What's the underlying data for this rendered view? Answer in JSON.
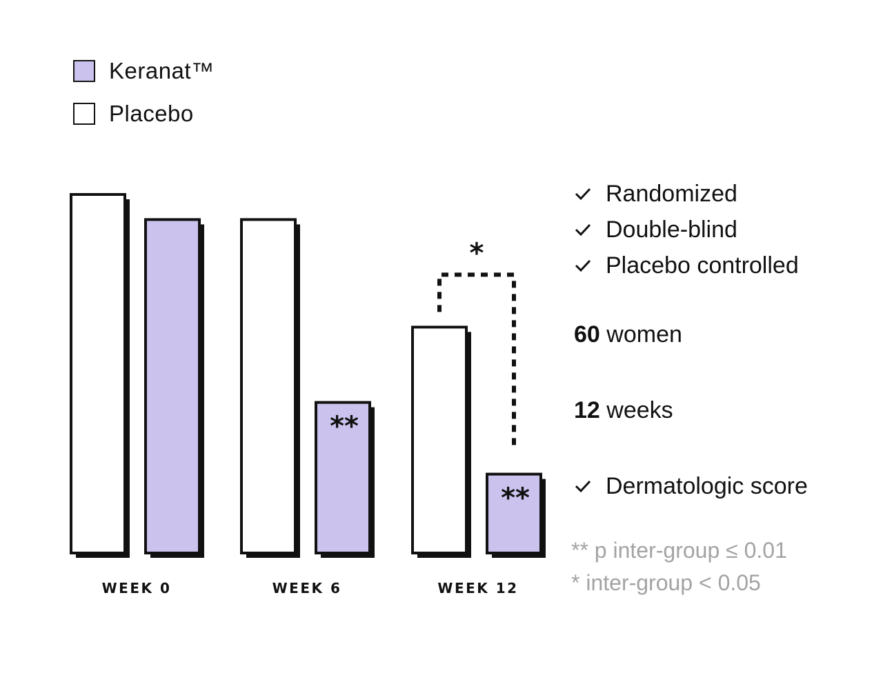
{
  "colors": {
    "keranat": "#cbc3ee",
    "placebo": "#ffffff",
    "ink": "#111111",
    "footnote": "#a3a3a3"
  },
  "legend": [
    {
      "label": "Keranat™",
      "color": "#cbc3ee"
    },
    {
      "label": "Placebo",
      "color": "#ffffff"
    }
  ],
  "chart_data": {
    "type": "bar",
    "categories": [
      "WEEK 0",
      "WEEK 6",
      "WEEK 12"
    ],
    "series": [
      {
        "name": "Placebo",
        "values": [
          100,
          93,
          63
        ],
        "markers": [
          "",
          "",
          ""
        ]
      },
      {
        "name": "Keranat™",
        "values": [
          93,
          42,
          22
        ],
        "markers": [
          "",
          "**",
          "**"
        ]
      }
    ],
    "comparison": {
      "category": "WEEK 12",
      "label": "*"
    },
    "ylim": [
      0,
      100
    ],
    "xlabel": "",
    "ylabel": "",
    "legend_position": "top-left"
  },
  "checklist_top": [
    "Randomized",
    "Double-blind",
    "Placebo controlled"
  ],
  "facts": [
    {
      "number": "60",
      "text": "women"
    },
    {
      "number": "12",
      "text": "weeks"
    }
  ],
  "checklist_bottom": [
    "Dermatologic score"
  ],
  "footnotes": [
    "** p inter-group ≤ 0.01",
    "* inter-group < 0.05"
  ]
}
